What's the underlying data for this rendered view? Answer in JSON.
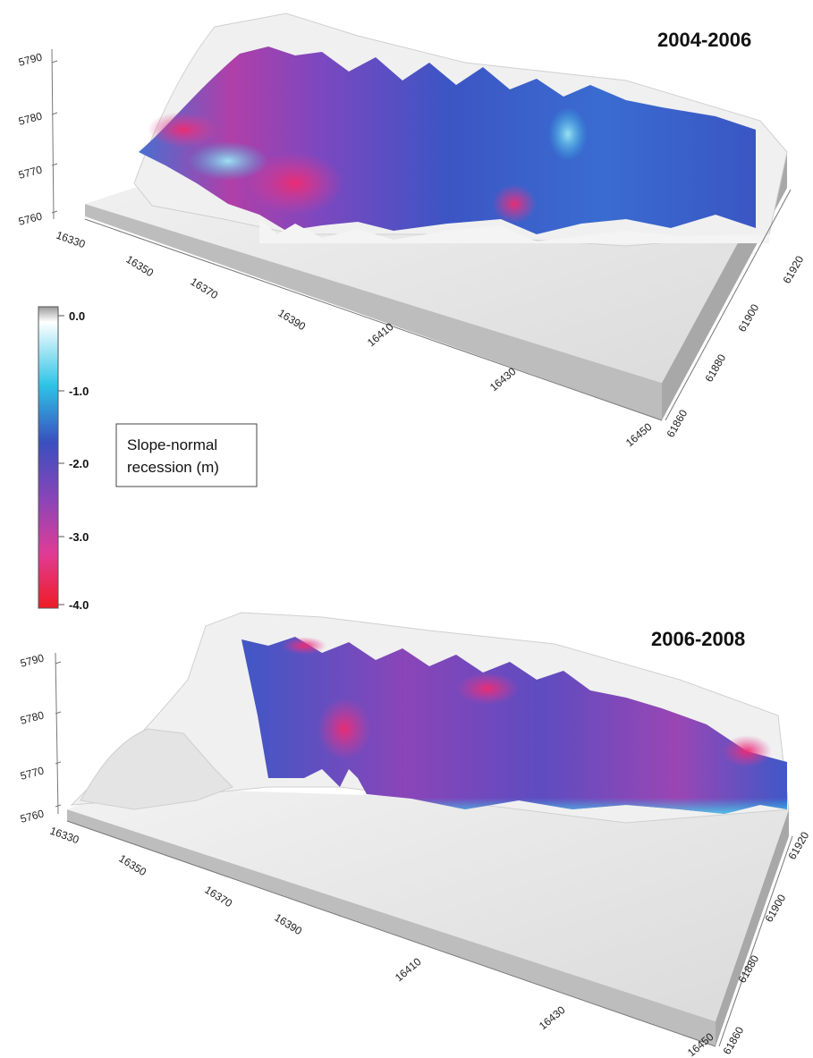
{
  "panels": [
    {
      "title": "2004-2006",
      "z_ticks": [
        "5790",
        "5780",
        "5770",
        "5760"
      ],
      "x_ticks": [
        "16330",
        "16350",
        "16370",
        "16390",
        "16410",
        "16430",
        "16450"
      ],
      "y_ticks": [
        "61920",
        "61900",
        "61880",
        "61860"
      ]
    },
    {
      "title": "2006-2008",
      "z_ticks": [
        "5790",
        "5780",
        "5770",
        "5760"
      ],
      "x_ticks": [
        "16330",
        "16350",
        "16370",
        "16390",
        "16410",
        "16430",
        "16450"
      ],
      "y_ticks": [
        "61920",
        "61900",
        "61880",
        "61860"
      ]
    }
  ],
  "colorbar": {
    "ticks": [
      "0.0",
      "-1.0",
      "-2.0",
      "-3.0",
      "-4.0"
    ],
    "colors": [
      "#ffffff",
      "#2ec4e6",
      "#3a4fbe",
      "#e03c95",
      "#ee1c25"
    ]
  },
  "legend": {
    "line1": "Slope-normal",
    "line2": "recession (m)"
  }
}
